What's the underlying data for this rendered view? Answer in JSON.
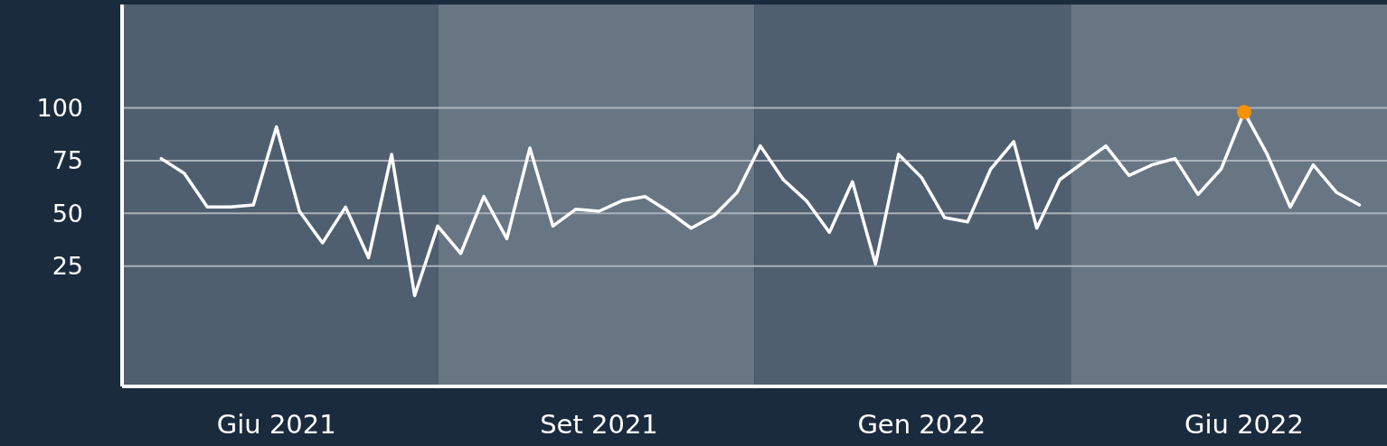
{
  "chart_data": {
    "type": "line",
    "categories": [
      null,
      null,
      null,
      null,
      null,
      "Giu 2021",
      null,
      null,
      null,
      null,
      null,
      null,
      null,
      null,
      null,
      null,
      null,
      null,
      null,
      "Set 2021",
      null,
      null,
      null,
      null,
      null,
      null,
      null,
      null,
      null,
      null,
      null,
      null,
      null,
      "Gen 2022",
      null,
      null,
      null,
      null,
      null,
      null,
      null,
      null,
      null,
      null,
      null,
      null,
      null,
      "Giu 2022",
      null,
      null,
      null,
      null,
      null
    ],
    "series": [
      {
        "color": "#ffffff",
        "values": [
          76,
          69,
          53,
          53,
          54,
          91,
          51,
          36,
          53,
          29,
          78,
          11,
          44,
          31,
          58,
          38,
          81,
          44,
          52,
          51,
          56,
          58,
          51,
          43,
          49,
          60,
          82,
          66,
          56,
          41,
          65,
          26,
          78,
          67,
          48,
          46,
          71,
          84,
          43,
          66,
          74,
          82,
          68,
          73,
          76,
          59,
          71,
          98,
          78,
          53,
          73,
          60,
          54
        ]
      },
      {
        "type": "scatter",
        "color": "#f39200",
        "marker": "circle",
        "x": [
          "Giu 2022"
        ],
        "values": [
          98
        ]
      }
    ],
    "ylim": [
      -32,
      149
    ],
    "yticks": [
      25,
      50,
      75,
      100
    ],
    "grid": "y",
    "line_style": "solid"
  }
}
